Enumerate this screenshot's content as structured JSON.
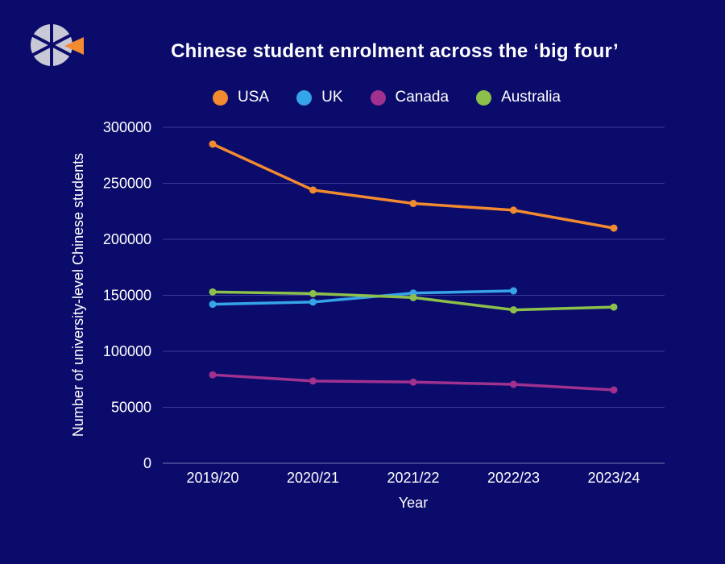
{
  "chart_data": {
    "type": "line",
    "title": "Chinese student enrolment across the ‘big four’",
    "xlabel": "Year",
    "ylabel": "Number of university-level Chinese students",
    "categories": [
      "2019/20",
      "2020/21",
      "2021/22",
      "2022/23",
      "2023/24"
    ],
    "ylim": [
      0,
      300000
    ],
    "yticks": [
      0,
      50000,
      100000,
      150000,
      200000,
      250000,
      300000
    ],
    "grid": true,
    "legend_position": "top-center",
    "series": [
      {
        "name": "USA",
        "color": "#f28a30",
        "values": [
          285000,
          244000,
          232000,
          226000,
          210000
        ]
      },
      {
        "name": "UK",
        "color": "#35a4e8",
        "values": [
          142000,
          144000,
          152000,
          154000,
          null
        ]
      },
      {
        "name": "Canada",
        "color": "#a0318f",
        "values": [
          79000,
          73500,
          72500,
          70500,
          65500
        ]
      },
      {
        "name": "Australia",
        "color": "#8cc04b",
        "values": [
          153000,
          151500,
          148000,
          137000,
          139500
        ]
      }
    ]
  },
  "colors": {
    "background": "#0b0b6b",
    "gridline": "#3a3a9a",
    "text": "#ffffff"
  },
  "logo": {
    "icon": "segmented-circle-logo-icon"
  }
}
